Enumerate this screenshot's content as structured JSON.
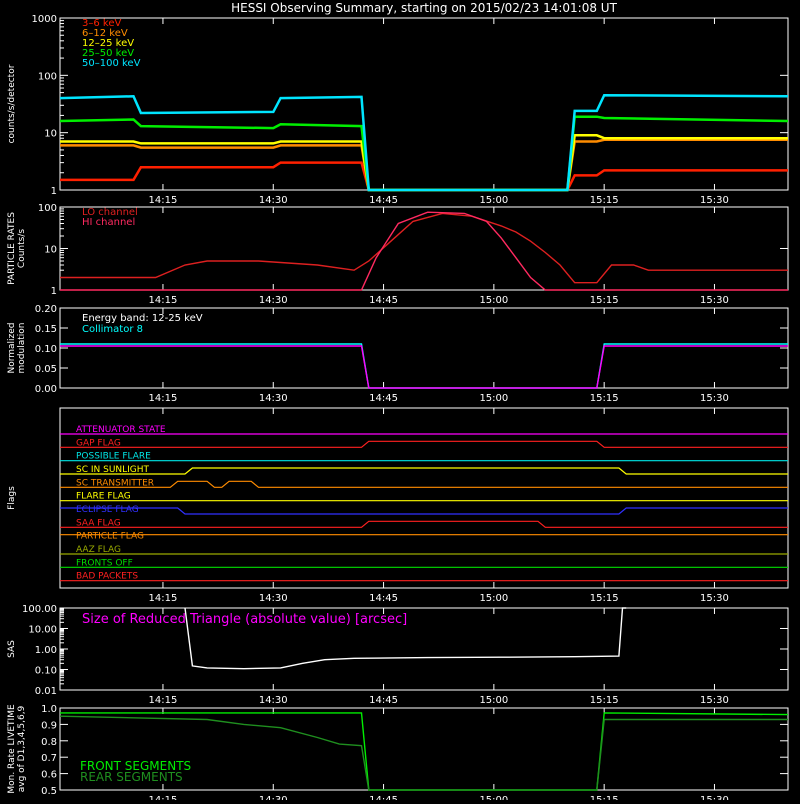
{
  "title": "HESSI Observing Summary, starting on 2015/02/23 14:01:08 UT",
  "x_tick_labels": [
    "14:15",
    "14:30",
    "14:45",
    "15:00",
    "15:15",
    "15:30"
  ],
  "x_tick_minutes": [
    14,
    29,
    44,
    59,
    74,
    89
  ],
  "x_range_minutes": [
    0,
    99
  ],
  "chart_data": [
    {
      "type": "line",
      "panel": "count-rates",
      "ylabel": "counts/s/detector",
      "yscale": "log",
      "ylim": [
        1,
        1000
      ],
      "y_tick_labels": [
        "1",
        "10",
        "100",
        "1000"
      ],
      "x": [
        0,
        10,
        11,
        29,
        30,
        41,
        42,
        69,
        70,
        73,
        74,
        99
      ],
      "series": [
        {
          "name": "3–6 keV",
          "color": "#ff2000",
          "values": [
            1.5,
            1.5,
            2.5,
            2.5,
            3.0,
            3.0,
            0.1,
            0.1,
            1.8,
            1.8,
            2.2,
            2.2
          ]
        },
        {
          "name": "6–12 keV",
          "color": "#ff8c00",
          "values": [
            6.0,
            6.0,
            5.5,
            5.5,
            6.0,
            6.0,
            0.1,
            0.1,
            7.0,
            7.0,
            7.5,
            7.5
          ]
        },
        {
          "name": "12–25 keV",
          "color": "#ffff00",
          "values": [
            7.0,
            7.0,
            6.5,
            6.5,
            7.0,
            7.0,
            0.1,
            0.1,
            9.0,
            9.0,
            8.0,
            8.0
          ]
        },
        {
          "name": "25–50 keV",
          "color": "#00ee00",
          "values": [
            16,
            17,
            13,
            12,
            14,
            13,
            0.1,
            0.1,
            19,
            19,
            18,
            16
          ]
        },
        {
          "name": "50–100 keV",
          "color": "#00e5ff",
          "values": [
            40,
            43,
            22,
            23,
            40,
            42,
            0.1,
            0.1,
            24,
            24,
            45,
            43
          ]
        }
      ]
    },
    {
      "type": "line",
      "panel": "particle-rates",
      "ylabel": "PARTICLE RATES Counts/s",
      "yscale": "log",
      "ylim": [
        1,
        100
      ],
      "y_tick_labels": [
        "1",
        "10",
        "100"
      ],
      "series": [
        {
          "name": "LO channel",
          "color": "#dd2020",
          "x": [
            0,
            8,
            13,
            17,
            20,
            27,
            35,
            40,
            42,
            45,
            48,
            52,
            56,
            60,
            62,
            64,
            66,
            68,
            70,
            73,
            75,
            78,
            80,
            99
          ],
          "values": [
            2,
            2,
            2,
            4,
            5,
            5,
            4,
            3,
            5,
            15,
            45,
            70,
            60,
            35,
            25,
            15,
            8,
            4,
            1.5,
            1.5,
            4,
            4,
            3,
            3
          ]
        },
        {
          "name": "HI channel",
          "color": "#ff2a60",
          "x": [
            0,
            41,
            43,
            46,
            50,
            55,
            58,
            60,
            62,
            64,
            66,
            99
          ],
          "values": [
            1,
            1,
            6,
            40,
            75,
            70,
            45,
            18,
            6,
            2,
            1,
            1
          ]
        }
      ]
    },
    {
      "type": "line",
      "panel": "modulation",
      "ylabel": "Normalized modulation",
      "ylim": [
        0,
        0.2
      ],
      "y_tick_labels": [
        "0.00",
        "0.05",
        "0.10",
        "0.15",
        "0.20"
      ],
      "annotation": "Energy band: 12-25 keV",
      "x": [
        0,
        41,
        42,
        73,
        74,
        99
      ],
      "series": [
        {
          "name": "Collimator 8",
          "color": "#00ffff",
          "values": [
            0.11,
            0.11,
            0.0,
            0.0,
            0.11,
            0.11
          ]
        },
        {
          "name": "",
          "color": "#ff00ff",
          "values": [
            0.105,
            0.105,
            0.0,
            0.0,
            0.105,
            0.105
          ]
        }
      ]
    },
    {
      "type": "line",
      "panel": "flags",
      "ylabel": "Flags",
      "flags": [
        {
          "name": "ATTENUATOR STATE",
          "color": "#ff00ff",
          "x": [
            0,
            99
          ],
          "values": [
            0,
            0
          ]
        },
        {
          "name": "GAP FLAG",
          "color": "#ff2020",
          "x": [
            0,
            41,
            42,
            73,
            74,
            99
          ],
          "values": [
            0,
            0,
            1,
            1,
            0,
            0
          ]
        },
        {
          "name": "POSSIBLE FLARE",
          "color": "#00e5e5",
          "x": [
            0,
            99
          ],
          "values": [
            0,
            0
          ]
        },
        {
          "name": "SC IN SUNLIGHT",
          "color": "#ffff00",
          "x": [
            0,
            17,
            18,
            76,
            77,
            99
          ],
          "values": [
            0,
            0,
            1,
            1,
            0,
            0
          ]
        },
        {
          "name": "SC TRANSMITTER",
          "color": "#ff8c00",
          "x": [
            0,
            15,
            16,
            20,
            21,
            22,
            23,
            26,
            27,
            99
          ],
          "values": [
            0,
            0,
            1,
            1,
            0,
            0,
            1,
            1,
            0,
            0
          ]
        },
        {
          "name": "FLARE FLAG",
          "color": "#ffff00",
          "x": [
            0,
            99
          ],
          "values": [
            0,
            0
          ]
        },
        {
          "name": "ECLIPSE FLAG",
          "color": "#3030ff",
          "x": [
            0,
            16,
            17,
            76,
            77,
            99
          ],
          "values": [
            1,
            1,
            0,
            0,
            1,
            1
          ]
        },
        {
          "name": "SAA FLAG",
          "color": "#ff2020",
          "x": [
            0,
            41,
            42,
            65,
            66,
            99
          ],
          "values": [
            0,
            0,
            1,
            1,
            0,
            0
          ]
        },
        {
          "name": "PARTICLE FLAG",
          "color": "#ff8c00",
          "x": [
            0,
            99
          ],
          "values": [
            1,
            1
          ]
        },
        {
          "name": "AAZ FLAG",
          "color": "#99aa00",
          "x": [
            0,
            99
          ],
          "values": [
            0,
            0
          ]
        },
        {
          "name": "FRONTS OFF",
          "color": "#00dd00",
          "x": [
            0,
            99
          ],
          "values": [
            0,
            0
          ]
        },
        {
          "name": "BAD PACKETS",
          "color": "#ff2020",
          "x": [
            0,
            99
          ],
          "values": [
            0,
            0
          ]
        }
      ]
    },
    {
      "type": "line",
      "panel": "sas",
      "ylabel": "SAS",
      "yscale": "log",
      "ylim": [
        0.01,
        100
      ],
      "y_tick_labels": [
        "0.01",
        "0.10",
        "1.00",
        "10.00",
        "100.00"
      ],
      "annotation": "Size of Reduced Triangle (absolute value) [arcsec]",
      "series": [
        {
          "name": "",
          "color": "#ffffff",
          "x": [
            17,
            18,
            20,
            25,
            30,
            33,
            36,
            40,
            50,
            60,
            70,
            76,
            76.5,
            77
          ],
          "values": [
            100,
            0.15,
            0.12,
            0.11,
            0.12,
            0.2,
            0.3,
            0.35,
            0.38,
            0.4,
            0.42,
            0.45,
            100,
            100
          ]
        }
      ]
    },
    {
      "type": "line",
      "panel": "livetime",
      "ylabel": "Mon. Rate LIVETIME avg of D1,3,4,5,6,9",
      "ylim": [
        0.5,
        1.0
      ],
      "y_tick_labels": [
        "0.5",
        "0.6",
        "0.7",
        "0.8",
        "0.9",
        "1.0"
      ],
      "x": [
        0,
        20,
        25,
        30,
        35,
        38,
        41,
        42,
        73,
        74,
        99
      ],
      "series": [
        {
          "name": "FRONT SEGMENTS",
          "color": "#00ee00",
          "values": [
            0.97,
            0.97,
            0.97,
            0.97,
            0.97,
            0.97,
            0.97,
            0.5,
            0.5,
            0.97,
            0.96
          ]
        },
        {
          "name": "REAR SEGMENTS",
          "color": "#1f8f1f",
          "values": [
            0.95,
            0.93,
            0.9,
            0.88,
            0.82,
            0.78,
            0.77,
            0.5,
            0.5,
            0.93,
            0.93
          ]
        }
      ]
    }
  ]
}
